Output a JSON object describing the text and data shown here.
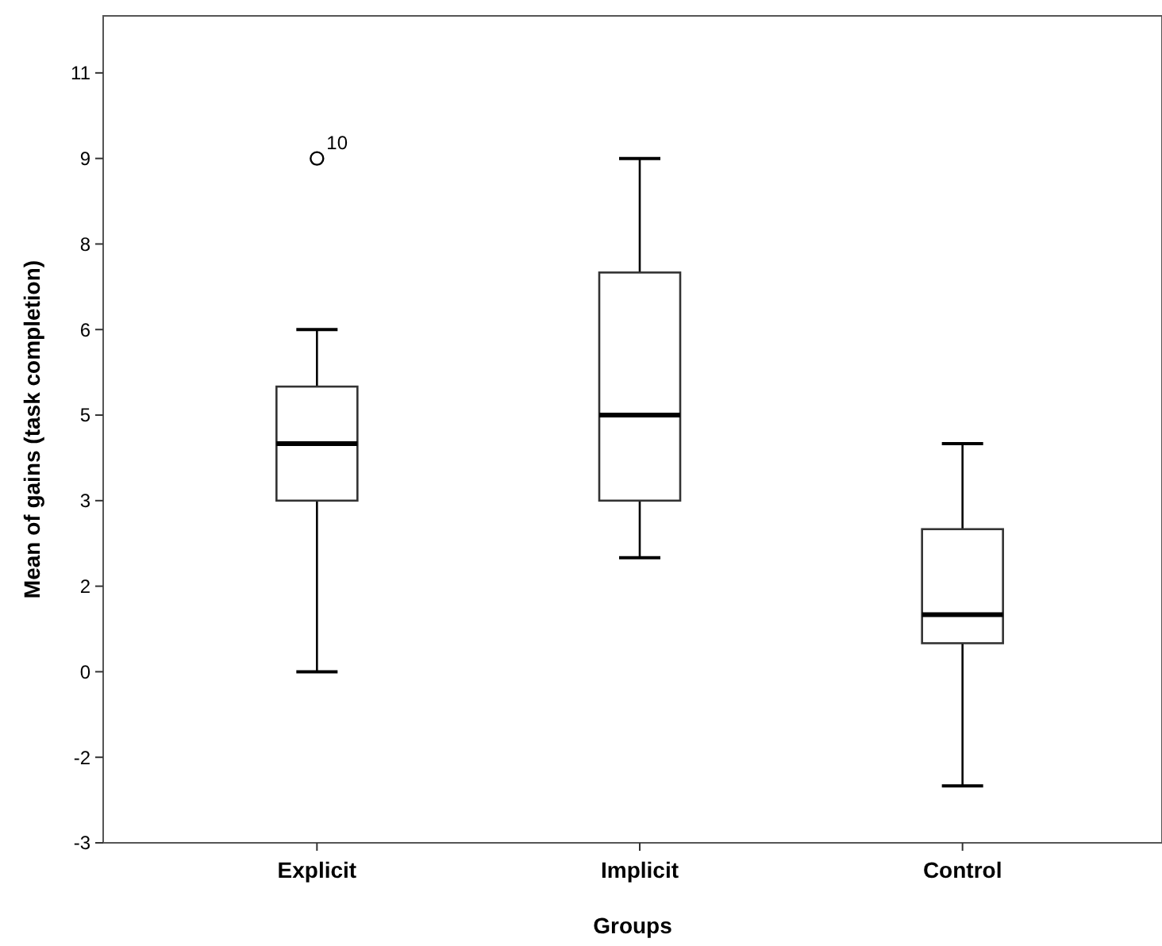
{
  "chart_data": {
    "type": "box",
    "xlabel": "Groups",
    "ylabel": "Mean of gains (task completion)",
    "categories": [
      "Explicit",
      "Implicit",
      "Control"
    ],
    "boxes": [
      {
        "low": 0,
        "q1": 3,
        "median": 4,
        "q3": 5,
        "high": 6,
        "outliers": [
          9
        ]
      },
      {
        "low": 2,
        "q1": 3,
        "median": 4.5,
        "q3": 7,
        "high": 9
      },
      {
        "low": -2,
        "q1": 0.5,
        "median": 1,
        "q3": 2.5,
        "high": 4
      }
    ],
    "ylim": [
      -3,
      11.5
    ],
    "yticks": [
      {
        "value": -3,
        "label": "-3"
      },
      {
        "value": -1.5,
        "label": "-2"
      },
      {
        "value": 0,
        "label": "0"
      },
      {
        "value": 1.5,
        "label": "2"
      },
      {
        "value": 3,
        "label": "3"
      },
      {
        "value": 4.5,
        "label": "5"
      },
      {
        "value": 6,
        "label": "6"
      },
      {
        "value": 7.5,
        "label": "8"
      },
      {
        "value": 9,
        "label": "9"
      },
      {
        "value": 10.5,
        "label": "11"
      }
    ],
    "annotations": [
      "10"
    ],
    "grid": false
  }
}
